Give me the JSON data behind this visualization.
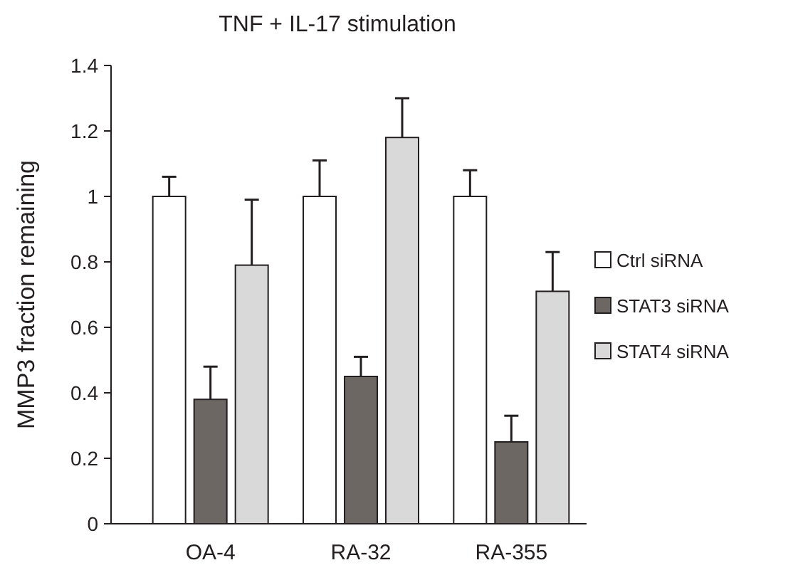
{
  "chart_data": {
    "type": "bar",
    "title": "TNF + IL-17 stimulation",
    "ylabel": "MMP3  fraction remaining",
    "categories": [
      "OA-4",
      "RA-32",
      "RA-355"
    ],
    "series": [
      {
        "name": "Ctrl siRNA",
        "color": "#ffffff",
        "values": [
          1,
          1,
          1
        ],
        "errors": [
          0.06,
          0.11,
          0.08
        ]
      },
      {
        "name": "STAT3 siRNA",
        "color": "#6d6764",
        "values": [
          0.38,
          0.45,
          0.25
        ],
        "errors": [
          0.1,
          0.06,
          0.08
        ]
      },
      {
        "name": "STAT4 siRNA",
        "color": "#d9d9d9",
        "values": [
          0.79,
          1.18,
          0.71
        ],
        "errors": [
          0.2,
          0.12,
          0.12
        ]
      }
    ],
    "ylim": [
      0,
      1.4
    ],
    "yticks": [
      0,
      0.2,
      0.4,
      0.6,
      0.8,
      1,
      1.2,
      1.4
    ],
    "legend": "right",
    "grid": false
  }
}
